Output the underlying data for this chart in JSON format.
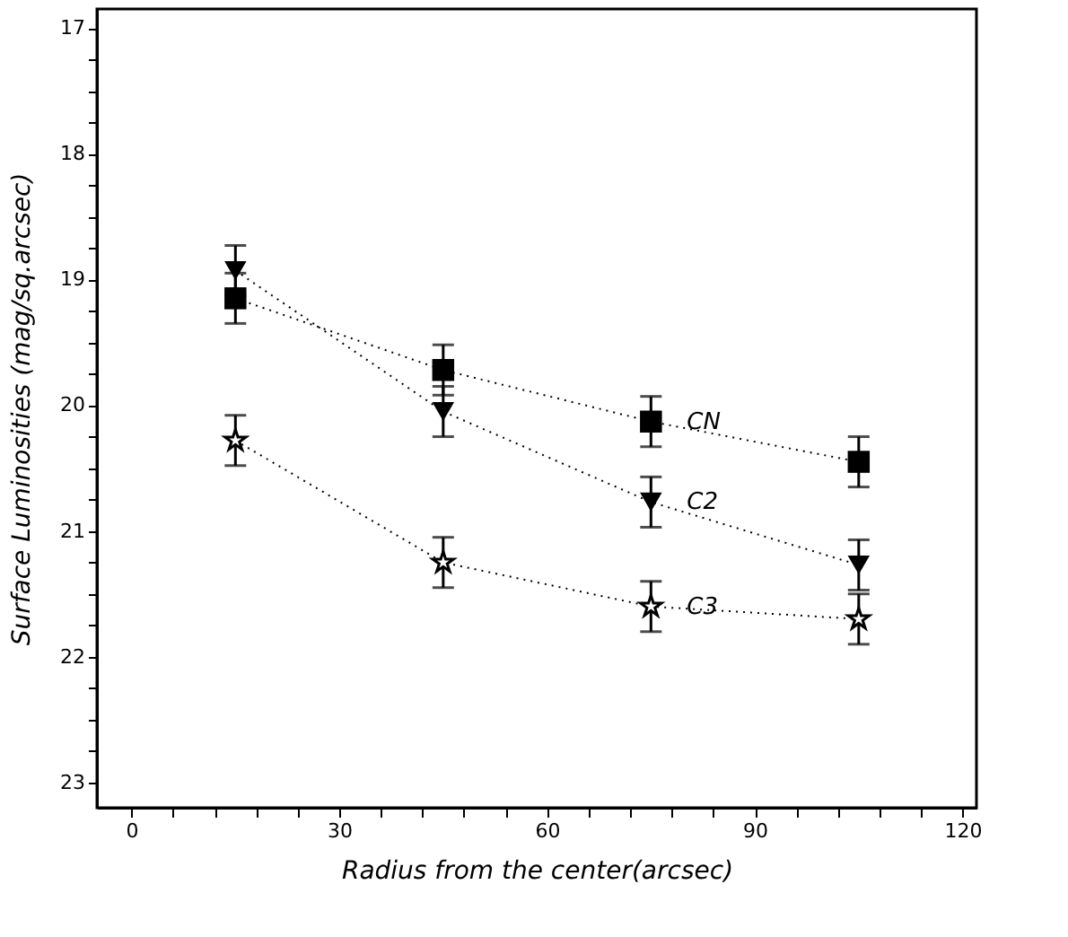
{
  "chart_data": {
    "type": "line",
    "xlabel": "Radius from the center(arcsec)",
    "ylabel": "Surface Luminosities (mag/sq.arcsec)",
    "x": [
      15,
      45,
      75,
      105
    ],
    "series": [
      {
        "name": "CN",
        "color": "#000000",
        "marker": "square",
        "values": [
          19.15,
          19.72,
          20.13,
          20.45
        ],
        "errors": [
          0.2,
          0.2,
          0.2,
          0.2
        ]
      },
      {
        "name": "C2",
        "color": "#000000",
        "marker": "triangle",
        "values": [
          18.93,
          20.05,
          20.77,
          21.27
        ],
        "errors": [
          0.2,
          0.2,
          0.2,
          0.2
        ]
      },
      {
        "name": "C3",
        "color": "#000000",
        "marker": "star",
        "values": [
          20.28,
          21.25,
          21.6,
          21.7
        ],
        "errors": [
          0.2,
          0.2,
          0.2,
          0.2
        ]
      }
    ],
    "line_style": "dotted",
    "xlim": [
      -5,
      122
    ],
    "ylim": [
      23.2,
      16.85
    ],
    "xticks": [
      0,
      {
        "value": 6,
        "label": null
      },
      {
        "value": 12,
        "label": null
      },
      {
        "value": 18,
        "label": null
      },
      {
        "value": 24,
        "label": null
      },
      30,
      {
        "value": 36,
        "label": null
      },
      {
        "value": 42,
        "label": null
      },
      {
        "value": 48,
        "label": null
      },
      {
        "value": 54,
        "label": null
      },
      60,
      {
        "value": 66,
        "label": null
      },
      {
        "value": 72,
        "label": null
      },
      {
        "value": 78,
        "label": null
      },
      {
        "value": 84,
        "label": null
      },
      90,
      {
        "value": 96,
        "label": null
      },
      {
        "value": 102,
        "label": null
      },
      {
        "value": 108,
        "label": null
      },
      {
        "value": 114,
        "label": null
      },
      120
    ],
    "yticks": [
      17,
      {
        "value": 17.25,
        "label": null
      },
      {
        "value": 17.5,
        "label": null
      },
      {
        "value": 17.75,
        "label": null
      },
      18,
      {
        "value": 18.25,
        "label": null
      },
      {
        "value": 18.5,
        "label": null
      },
      {
        "value": 18.75,
        "label": null
      },
      19,
      {
        "value": 19.25,
        "label": null
      },
      {
        "value": 19.5,
        "label": null
      },
      {
        "value": 19.75,
        "label": null
      },
      20,
      {
        "value": 20.25,
        "label": null
      },
      {
        "value": 20.5,
        "label": null
      },
      {
        "value": 20.75,
        "label": null
      },
      21,
      {
        "value": 21.25,
        "label": null
      },
      {
        "value": 21.5,
        "label": null
      },
      {
        "value": 21.75,
        "label": null
      },
      22,
      {
        "value": 22.25,
        "label": null
      },
      {
        "value": 22.5,
        "label": null
      },
      {
        "value": 22.75,
        "label": null
      },
      23
    ],
    "grid": false,
    "legend": false
  }
}
